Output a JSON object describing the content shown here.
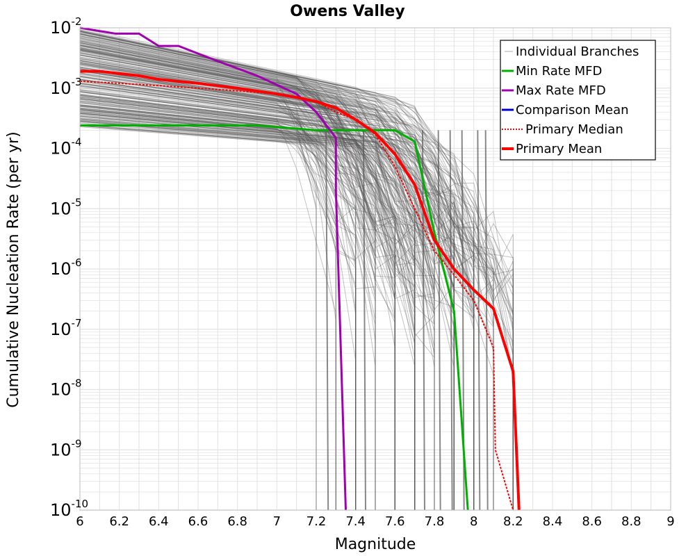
{
  "chart_data": {
    "type": "line",
    "title": "Owens Valley",
    "xlabel": "Magnitude",
    "ylabel": "Cumulative Nucleation Rate (per yr)",
    "xlim": [
      6,
      9
    ],
    "ylim": [
      1e-10,
      0.01
    ],
    "yscale": "log",
    "grid": true,
    "legend_position": "top-right",
    "x_ticks": [
      "6",
      "6.2",
      "6.4",
      "6.6",
      "6.8",
      "7",
      "7.2",
      "7.4",
      "7.6",
      "7.8",
      "8",
      "8.2",
      "8.4",
      "8.6",
      "8.8",
      "9"
    ],
    "y_ticks": [
      {
        "base": "10",
        "exp": "-2",
        "value": 0.01
      },
      {
        "base": "10",
        "exp": "-3",
        "value": 0.001
      },
      {
        "base": "10",
        "exp": "-4",
        "value": 0.0001
      },
      {
        "base": "10",
        "exp": "-5",
        "value": 1e-05
      },
      {
        "base": "10",
        "exp": "-6",
        "value": 1e-06
      },
      {
        "base": "10",
        "exp": "-7",
        "value": 1e-07
      },
      {
        "base": "10",
        "exp": "-8",
        "value": 1e-08
      },
      {
        "base": "10",
        "exp": "-9",
        "value": 1e-09
      },
      {
        "base": "10",
        "exp": "-10",
        "value": 1e-10
      }
    ],
    "series": [
      {
        "name": "Min Rate MFD",
        "color": "#00b000",
        "style": "solid",
        "x": [
          6.0,
          6.9,
          7.2,
          7.6,
          7.7,
          7.8,
          7.9,
          7.97
        ],
        "y": [
          0.00024,
          0.00024,
          0.0002,
          0.0002,
          0.00013,
          4e-06,
          2e-07,
          1e-10
        ]
      },
      {
        "name": "Max Rate MFD",
        "color": "#a000b0",
        "style": "solid",
        "x": [
          6.0,
          6.18,
          6.3,
          6.4,
          6.5,
          6.7,
          6.9,
          7.1,
          7.2,
          7.3,
          7.3,
          7.35
        ],
        "y": [
          0.01,
          0.008,
          0.008,
          0.005,
          0.005,
          0.0028,
          0.0016,
          0.0008,
          0.0004,
          0.00015,
          2e-05,
          1e-10
        ]
      },
      {
        "name": "Comparison Mean",
        "color": "#0000d0",
        "style": "solid",
        "x": [],
        "y": []
      },
      {
        "name": "Primary Median",
        "color": "#ff0000",
        "style": "dotted",
        "x": [
          6.0,
          6.2,
          6.4,
          6.6,
          6.8,
          7.0,
          7.2,
          7.3,
          7.4,
          7.5,
          7.6,
          7.7,
          7.8,
          7.9,
          8.0,
          8.1,
          8.11,
          8.2
        ],
        "y": [
          0.0013,
          0.0012,
          0.0011,
          0.001,
          0.0009,
          0.0008,
          0.0006,
          0.0004,
          0.0003,
          0.00017,
          5e-05,
          1e-05,
          2e-06,
          8e-07,
          3e-07,
          5e-08,
          1e-09,
          1e-10
        ]
      },
      {
        "name": "Primary Mean",
        "color": "#ff0000",
        "style": "solid",
        "x": [
          6.0,
          6.1,
          6.3,
          6.4,
          6.6,
          6.8,
          7.0,
          7.1,
          7.2,
          7.3,
          7.4,
          7.5,
          7.6,
          7.7,
          7.8,
          7.9,
          8.0,
          8.1,
          8.2,
          8.23
        ],
        "y": [
          0.0019,
          0.0019,
          0.0016,
          0.0014,
          0.0012,
          0.001,
          0.0008,
          0.0007,
          0.0006,
          0.00047,
          0.0003,
          0.00018,
          8e-05,
          2.5e-05,
          3e-06,
          1e-06,
          4.5e-07,
          2.2e-07,
          2e-08,
          1e-10
        ]
      }
    ],
    "legend": {
      "individual_label": "Individual Branches",
      "entries": [
        "Min Rate MFD",
        "Max Rate MFD",
        "Comparison Mean",
        "Primary Median",
        "Primary Mean"
      ]
    },
    "colors": {
      "branches": "#555555",
      "grid": "#e2e2e2",
      "frame": "#bbbbbb"
    }
  }
}
